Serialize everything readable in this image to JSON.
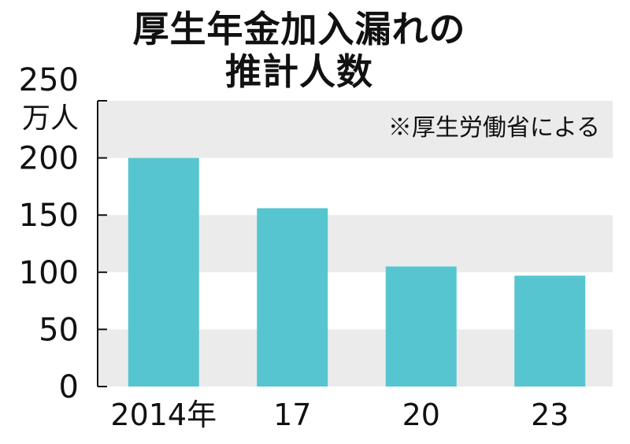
{
  "title_line1": "厚生年金加入漏れの",
  "title_line2": "推計人数",
  "chart_data": {
    "type": "bar",
    "title": "厚生年金加入漏れの推計人数",
    "unit": "万人",
    "note": "※厚生労働省による",
    "categories": [
      "2014年",
      "17",
      "20",
      "23"
    ],
    "values": [
      200,
      156,
      105,
      97
    ],
    "ylim": [
      0,
      250
    ],
    "yticks": [
      "0",
      "50",
      "100",
      "150",
      "200",
      "250"
    ],
    "bar_color": "#57c5cf",
    "band_color": "#ebebeb",
    "grid": "alternating horizontal bands",
    "xlabel": "",
    "ylabel": ""
  }
}
